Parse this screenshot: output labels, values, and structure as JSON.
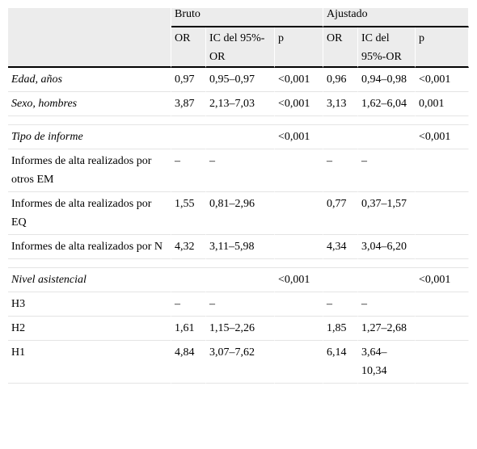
{
  "header": {
    "group_bruto": "Bruto",
    "group_ajustado": "Ajustado",
    "bruto_or": "OR",
    "bruto_ic": "IC del 95%-OR",
    "bruto_p": "p",
    "ajustado_or": "OR",
    "ajustado_ic": "IC del 95%-OR",
    "ajustado_p": "p"
  },
  "rows": [
    {
      "label": "Edad, años",
      "italic": true,
      "bruto_or": "0,97",
      "bruto_ic": "0,95–0,97",
      "bruto_p": "<0,001",
      "aj_or": "0,96",
      "aj_ic": "0,94–0,98",
      "aj_p": "<0,001"
    },
    {
      "label": "Sexo, hombres",
      "italic": true,
      "bruto_or": "3,87",
      "bruto_ic": "2,13–7,03",
      "bruto_p": "<0,001",
      "aj_or": "3,13",
      "aj_ic": "1,62–6,04",
      "aj_p": "0,001"
    },
    {
      "spacer": true
    },
    {
      "label": "Tipo de informe",
      "italic": true,
      "bruto_or": "",
      "bruto_ic": "",
      "bruto_p": "<0,001",
      "aj_or": "",
      "aj_ic": "",
      "aj_p": "<0,001"
    },
    {
      "label": "Informes de alta realizados por otros EM",
      "italic": false,
      "bruto_or": "–",
      "bruto_ic": "–",
      "bruto_p": "",
      "aj_or": "–",
      "aj_ic": "–",
      "aj_p": ""
    },
    {
      "label": "Informes de alta realizados por EQ",
      "italic": false,
      "bruto_or": "1,55",
      "bruto_ic": "0,81–2,96",
      "bruto_p": "",
      "aj_or": "0,77",
      "aj_ic": "0,37–1,57",
      "aj_p": ""
    },
    {
      "label": "Informes de alta realizados por N",
      "italic": false,
      "bruto_or": "4,32",
      "bruto_ic": "3,11–5,98",
      "bruto_p": "",
      "aj_or": "4,34",
      "aj_ic": "3,04–6,20",
      "aj_p": ""
    },
    {
      "spacer": true
    },
    {
      "label": "Nivel asistencial",
      "italic": true,
      "bruto_or": "",
      "bruto_ic": "",
      "bruto_p": "<0,001",
      "aj_or": "",
      "aj_ic": "",
      "aj_p": "<0,001"
    },
    {
      "label": "H3",
      "italic": false,
      "bruto_or": "–",
      "bruto_ic": "–",
      "bruto_p": "",
      "aj_or": "–",
      "aj_ic": "–",
      "aj_p": ""
    },
    {
      "label": "H2",
      "italic": false,
      "bruto_or": "1,61",
      "bruto_ic": "1,15–2,26",
      "bruto_p": "",
      "aj_or": "1,85",
      "aj_ic": "1,27–2,68",
      "aj_p": ""
    },
    {
      "label": "H1",
      "italic": false,
      "bruto_or": "4,84",
      "bruto_ic": "3,07–7,62",
      "bruto_p": "",
      "aj_or": "6,14",
      "aj_ic": "3,64–10,34",
      "aj_p": ""
    }
  ]
}
